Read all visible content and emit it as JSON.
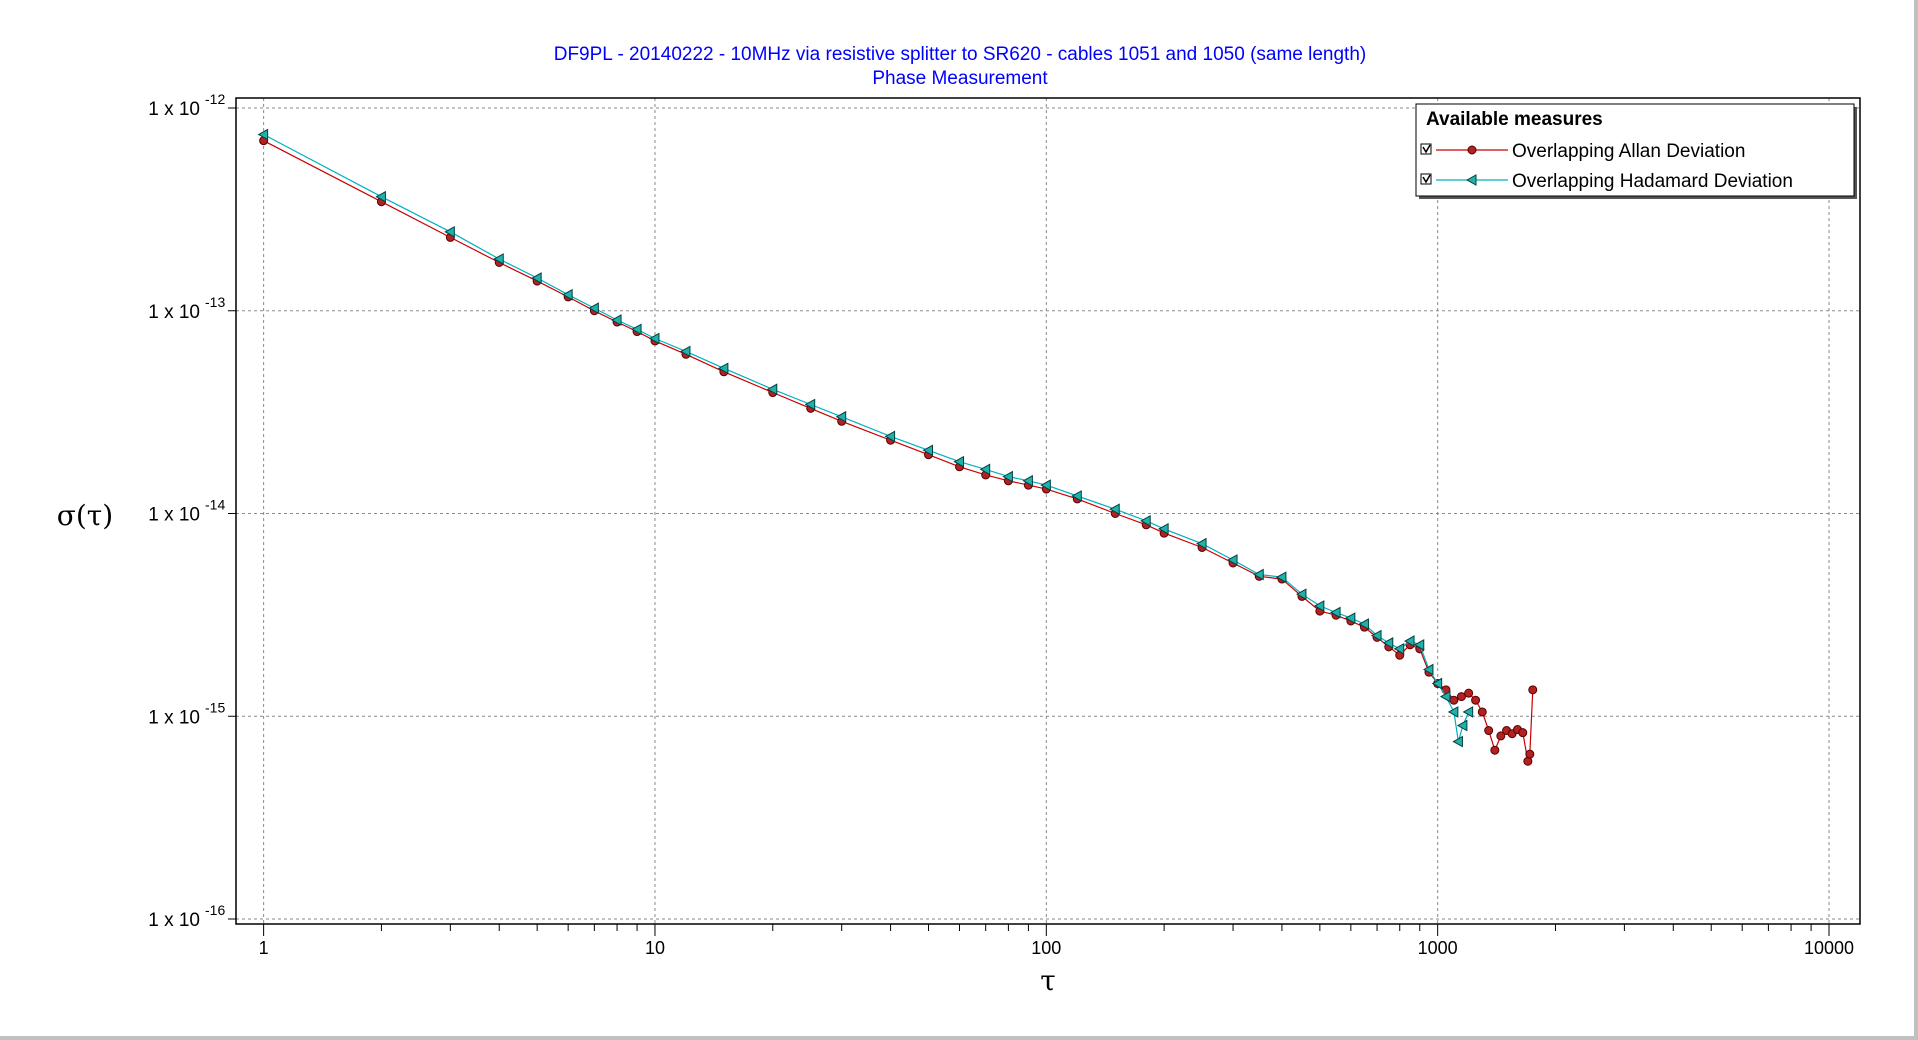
{
  "chart_data": {
    "type": "scatter",
    "title": "DF9PL - 20140222 - 10MHz via resistive splitter to SR620 - cables 1051 and 1050 (same length)",
    "subtitle": "Phase Measurement",
    "xlabel": "τ",
    "ylabel": "σ(τ)",
    "x_scale": "log",
    "y_scale": "log",
    "xlim": [
      0.85,
      12000
    ],
    "ylim": [
      1e-16,
      1e-12
    ],
    "grid": true,
    "x_ticks": [
      {
        "value": 1,
        "label": "1"
      },
      {
        "value": 10,
        "label": "10"
      },
      {
        "value": 100,
        "label": "100"
      },
      {
        "value": 1000,
        "label": "1000"
      },
      {
        "value": 10000,
        "label": "10000"
      }
    ],
    "y_ticks": [
      {
        "value": 1e-12,
        "mantissa": "1 x 10",
        "exponent": "-12"
      },
      {
        "value": 1e-13,
        "mantissa": "1 x 10",
        "exponent": "-13"
      },
      {
        "value": 1e-14,
        "mantissa": "1 x 10",
        "exponent": "-14"
      },
      {
        "value": 1e-15,
        "mantissa": "1 x 10",
        "exponent": "-15"
      },
      {
        "value": 1e-16,
        "mantissa": "1 x 10",
        "exponent": "-16"
      }
    ],
    "legend": {
      "title": "Available measures",
      "placement": "top-right",
      "checked": [
        true,
        true
      ]
    },
    "series": [
      {
        "name": "Overlapping Allan Deviation",
        "color": "#cc0000",
        "fill": "#b22222",
        "marker": "circle",
        "points": [
          [
            1,
            6.9e-13
          ],
          [
            2,
            3.45e-13
          ],
          [
            3,
            2.3e-13
          ],
          [
            4,
            1.73e-13
          ],
          [
            5,
            1.4e-13
          ],
          [
            6,
            1.17e-13
          ],
          [
            7,
            1e-13
          ],
          [
            8,
            8.8e-14
          ],
          [
            9,
            7.9e-14
          ],
          [
            10,
            7.1e-14
          ],
          [
            12,
            6.1e-14
          ],
          [
            15,
            5e-14
          ],
          [
            20,
            3.95e-14
          ],
          [
            25,
            3.3e-14
          ],
          [
            30,
            2.85e-14
          ],
          [
            40,
            2.3e-14
          ],
          [
            50,
            1.95e-14
          ],
          [
            60,
            1.7e-14
          ],
          [
            70,
            1.55e-14
          ],
          [
            80,
            1.45e-14
          ],
          [
            90,
            1.38e-14
          ],
          [
            100,
            1.32e-14
          ],
          [
            120,
            1.18e-14
          ],
          [
            150,
            1e-14
          ],
          [
            180,
            8.8e-15
          ],
          [
            200,
            8e-15
          ],
          [
            250,
            6.8e-15
          ],
          [
            300,
            5.7e-15
          ],
          [
            350,
            4.9e-15
          ],
          [
            400,
            4.75e-15
          ],
          [
            450,
            3.9e-15
          ],
          [
            500,
            3.3e-15
          ],
          [
            550,
            3.15e-15
          ],
          [
            600,
            2.95e-15
          ],
          [
            650,
            2.75e-15
          ],
          [
            700,
            2.45e-15
          ],
          [
            750,
            2.2e-15
          ],
          [
            800,
            2e-15
          ],
          [
            850,
            2.25e-15
          ],
          [
            900,
            2.15e-15
          ],
          [
            950,
            1.65e-15
          ],
          [
            1000,
            1.45e-15
          ],
          [
            1050,
            1.35e-15
          ],
          [
            1100,
            1.2e-15
          ],
          [
            1150,
            1.25e-15
          ],
          [
            1200,
            1.3e-15
          ],
          [
            1250,
            1.2e-15
          ],
          [
            1300,
            1.05e-15
          ],
          [
            1350,
            8.5e-16
          ],
          [
            1400,
            6.8e-16
          ],
          [
            1450,
            8e-16
          ],
          [
            1500,
            8.5e-16
          ],
          [
            1550,
            8.2e-16
          ],
          [
            1600,
            8.6e-16
          ],
          [
            1650,
            8.3e-16
          ],
          [
            1700,
            6e-16
          ],
          [
            1720,
            6.5e-16
          ],
          [
            1750,
            1.35e-15
          ]
        ]
      },
      {
        "name": "Overlapping Hadamard Deviation",
        "color": "#00b0c0",
        "fill": "#20b2aa",
        "marker": "triangle-left",
        "points": [
          [
            1,
            7.4e-13
          ],
          [
            2,
            3.65e-13
          ],
          [
            3,
            2.45e-13
          ],
          [
            4,
            1.8e-13
          ],
          [
            5,
            1.45e-13
          ],
          [
            6,
            1.2e-13
          ],
          [
            7,
            1.03e-13
          ],
          [
            8,
            9e-14
          ],
          [
            9,
            8.1e-14
          ],
          [
            10,
            7.3e-14
          ],
          [
            12,
            6.3e-14
          ],
          [
            15,
            5.2e-14
          ],
          [
            20,
            4.1e-14
          ],
          [
            25,
            3.45e-14
          ],
          [
            30,
            3e-14
          ],
          [
            40,
            2.4e-14
          ],
          [
            50,
            2.05e-14
          ],
          [
            60,
            1.8e-14
          ],
          [
            70,
            1.65e-14
          ],
          [
            80,
            1.52e-14
          ],
          [
            90,
            1.45e-14
          ],
          [
            100,
            1.38e-14
          ],
          [
            120,
            1.22e-14
          ],
          [
            150,
            1.05e-14
          ],
          [
            180,
            9.2e-15
          ],
          [
            200,
            8.4e-15
          ],
          [
            250,
            7.1e-15
          ],
          [
            300,
            5.9e-15
          ],
          [
            350,
            5e-15
          ],
          [
            400,
            4.85e-15
          ],
          [
            450,
            4e-15
          ],
          [
            500,
            3.5e-15
          ],
          [
            550,
            3.25e-15
          ],
          [
            600,
            3.05e-15
          ],
          [
            650,
            2.85e-15
          ],
          [
            700,
            2.5e-15
          ],
          [
            750,
            2.3e-15
          ],
          [
            800,
            2.15e-15
          ],
          [
            850,
            2.35e-15
          ],
          [
            900,
            2.25e-15
          ],
          [
            950,
            1.7e-15
          ],
          [
            1000,
            1.45e-15
          ],
          [
            1050,
            1.25e-15
          ],
          [
            1100,
            1.05e-15
          ],
          [
            1130,
            7.5e-16
          ],
          [
            1160,
            9e-16
          ],
          [
            1200,
            1.05e-15
          ]
        ]
      }
    ]
  }
}
